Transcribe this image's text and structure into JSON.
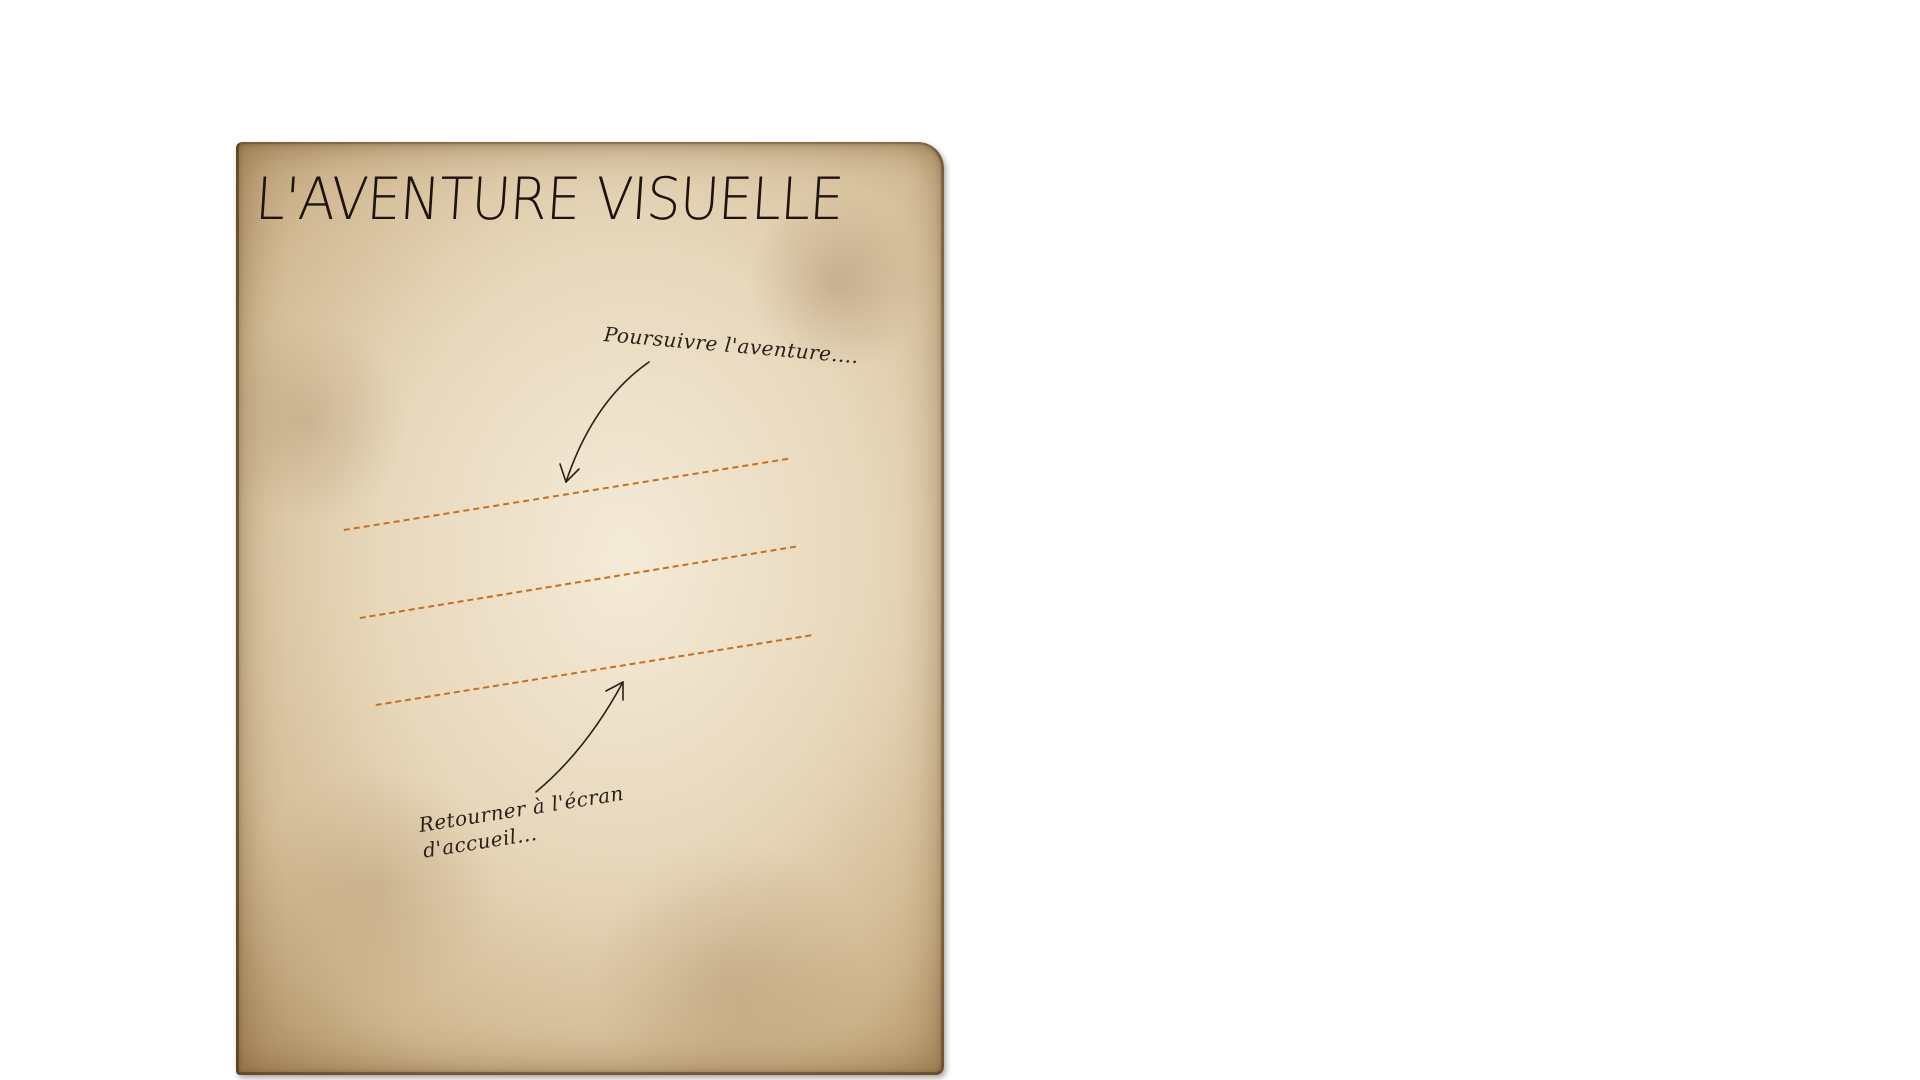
{
  "title": "L'AVENTURE VISUELLE",
  "menu": {
    "continue_note": "Poursuivre l'aventure....",
    "home_note": "Retourner à l'écran d'accueil..."
  },
  "colors": {
    "paper": "#e2cfb0",
    "ink": "#1e120c",
    "dashed_line": "#c86f1f"
  }
}
